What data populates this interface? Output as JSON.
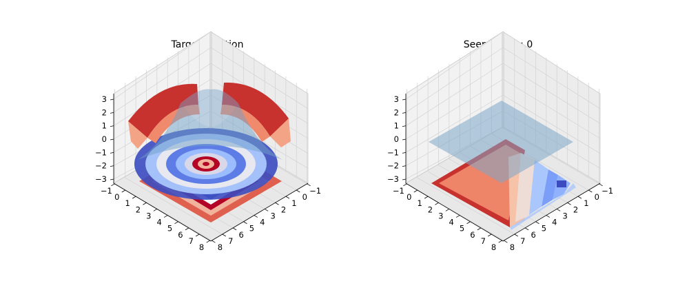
{
  "chart_data": [
    {
      "type": "surface3d",
      "title": "Target function",
      "xlabel": "",
      "ylabel": "",
      "zlabel": "",
      "x_ticks": [
        "−1",
        "0",
        "1",
        "2",
        "3",
        "4",
        "5",
        "6",
        "7",
        "8"
      ],
      "y_ticks": [
        "−1",
        "0",
        "1",
        "2",
        "3",
        "4",
        "5",
        "6",
        "7",
        "8"
      ],
      "z_ticks": [
        "−3",
        "−2",
        "−1",
        "0",
        "1",
        "2",
        "3"
      ],
      "xlim": [
        -1,
        8
      ],
      "ylim": [
        -1,
        8
      ],
      "zlim": [
        -3,
        3
      ],
      "view": {
        "elev": 45,
        "azim": 45
      },
      "layers": [
        {
          "kind": "target-surface",
          "style": "colored-rings",
          "colormap": "coolwarm"
        },
        {
          "kind": "model-surface",
          "style": "translucent",
          "color": "#6f9fc8"
        },
        {
          "kind": "contour-floor",
          "z": -3,
          "colormap": "coolwarm"
        }
      ],
      "grid": true
    },
    {
      "type": "surface3d",
      "title": "Seen points: 0",
      "xlabel": "",
      "ylabel": "",
      "zlabel": "",
      "x_ticks": [
        "−1",
        "0",
        "1",
        "2",
        "3",
        "4",
        "5",
        "6",
        "7",
        "8"
      ],
      "y_ticks": [
        "−1",
        "0",
        "1",
        "2",
        "3",
        "4",
        "5",
        "6",
        "7",
        "8"
      ],
      "z_ticks": [
        "−3",
        "−2",
        "−1",
        "0",
        "1",
        "2",
        "3"
      ],
      "xlim": [
        -1,
        8
      ],
      "ylim": [
        -1,
        8
      ],
      "zlim": [
        -3,
        3
      ],
      "view": {
        "elev": 45,
        "azim": 45
      },
      "layers": [
        {
          "kind": "model-surface",
          "style": "translucent-flat",
          "z": 0,
          "color": "#7ea6c9"
        },
        {
          "kind": "contour-floor",
          "z": -3,
          "colormap": "coolwarm"
        }
      ],
      "grid": true
    }
  ]
}
